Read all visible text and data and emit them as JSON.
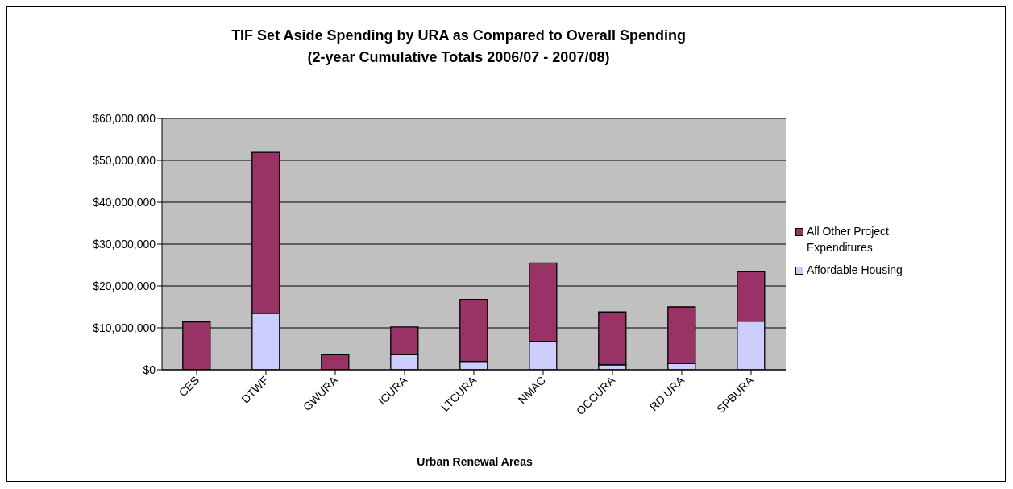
{
  "chart_data": {
    "type": "bar",
    "title": "TIF Set Aside Spending by URA as Compared to Overall Spending",
    "subtitle": "(2-year Cumulative Totals 2006/07 - 2007/08)",
    "xlabel": "Urban Renewal Areas",
    "categories": [
      "CES",
      "DTWF",
      "GWURA",
      "ICURA",
      "LTCURA",
      "NMAC",
      "OCCURA",
      "RD URA",
      "SPBURA"
    ],
    "stacked": true,
    "series": [
      {
        "name": "Affordable Housing",
        "color": "#ccccff",
        "values": [
          0,
          13500000,
          null,
          3600000,
          2000000,
          6800000,
          1200000,
          1500000,
          11600000
        ]
      },
      {
        "name": "All Other Project Expenditures",
        "color": "#993366",
        "values": [
          11400000,
          38400000,
          3600000,
          6600000,
          14800000,
          18700000,
          12600000,
          13500000,
          11800000
        ]
      }
    ],
    "ylim": [
      0,
      60000000
    ],
    "yticks": [
      {
        "value": 0,
        "label": "$0"
      },
      {
        "value": 10000000,
        "label": "$10,000,000"
      },
      {
        "value": 20000000,
        "label": "$20,000,000"
      },
      {
        "value": 30000000,
        "label": "$30,000,000"
      },
      {
        "value": 40000000,
        "label": "$40,000,000"
      },
      {
        "value": 50000000,
        "label": "$50,000,000"
      },
      {
        "value": 60000000,
        "label": "$60,000,000"
      }
    ],
    "grid": "y",
    "legend": "right"
  }
}
